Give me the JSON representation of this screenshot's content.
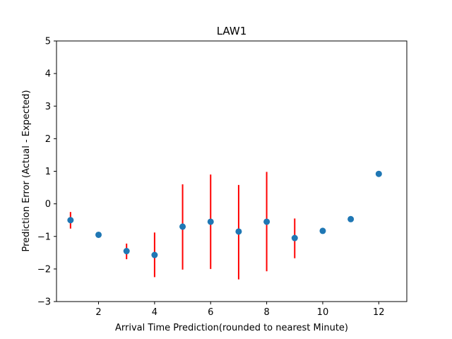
{
  "chart_data": {
    "type": "scatter",
    "title": "LAW1",
    "xlabel": "Arrival Time Prediction(rounded to nearest Minute)",
    "ylabel": "Prediction Error (Actual - Expected)",
    "xlim": [
      0.5,
      13
    ],
    "ylim": [
      -3,
      5
    ],
    "xticks": [
      2,
      4,
      6,
      8,
      10,
      12
    ],
    "xtick_labels": [
      "2",
      "4",
      "6",
      "8",
      "10",
      "12"
    ],
    "yticks": [
      -3,
      -2,
      -1,
      0,
      1,
      2,
      3,
      4,
      5
    ],
    "ytick_labels": [
      "−3",
      "−2",
      "−1",
      "0",
      "1",
      "2",
      "3",
      "4",
      "5"
    ],
    "grid": false,
    "legend": false,
    "point_color": "#1f77b4",
    "errorbar_color": "#ff0000",
    "points": [
      {
        "x": 1,
        "y": -0.5,
        "ymin": -0.76,
        "ymax": -0.25
      },
      {
        "x": 2,
        "y": -0.95,
        "ymin": -0.98,
        "ymax": -0.92
      },
      {
        "x": 3,
        "y": -1.45,
        "ymin": -1.7,
        "ymax": -1.22
      },
      {
        "x": 4,
        "y": -1.57,
        "ymin": -2.25,
        "ymax": -0.88
      },
      {
        "x": 5,
        "y": -0.7,
        "ymin": -2.02,
        "ymax": 0.6
      },
      {
        "x": 6,
        "y": -0.55,
        "ymin": -2.0,
        "ymax": 0.9
      },
      {
        "x": 7,
        "y": -0.85,
        "ymin": -2.32,
        "ymax": 0.58
      },
      {
        "x": 8,
        "y": -0.55,
        "ymin": -2.07,
        "ymax": 0.98
      },
      {
        "x": 9,
        "y": -1.05,
        "ymin": -1.67,
        "ymax": -0.45
      },
      {
        "x": 10,
        "y": -0.83
      },
      {
        "x": 11,
        "y": -0.47
      },
      {
        "x": 12,
        "y": 0.92
      }
    ]
  }
}
